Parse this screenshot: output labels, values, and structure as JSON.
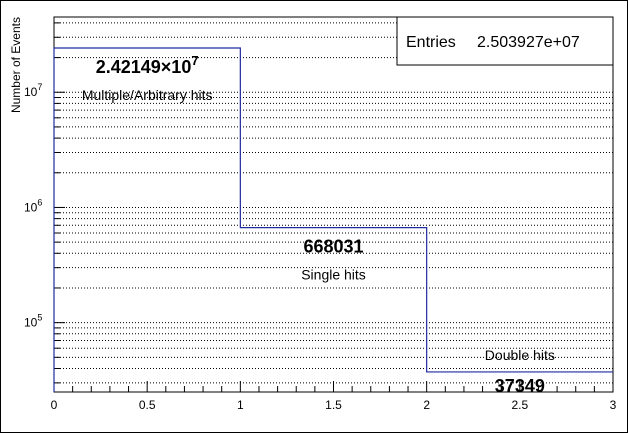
{
  "chart_data": {
    "type": "bar",
    "style": "step-histogram",
    "x_ticks": [
      "0",
      "0.5",
      "1",
      "1.5",
      "2",
      "2.5",
      "3"
    ],
    "y_ticks": [
      {
        "base": "10",
        "exp": "5"
      },
      {
        "base": "10",
        "exp": "6"
      },
      {
        "base": "10",
        "exp": "7"
      }
    ],
    "xlim": [
      0,
      3
    ],
    "ylim": [
      25000,
      45000000
    ],
    "yscale": "log",
    "grid": true,
    "ylabel": "Number of Events",
    "line_color": "#1f2aa0",
    "bins": [
      {
        "x_low": 0,
        "x_high": 1,
        "value": 24214900,
        "value_mantissa": "2.42149",
        "value_base": "×10",
        "value_exp": "7",
        "label": "Multiple/Arbitrary hits"
      },
      {
        "x_low": 1,
        "x_high": 2,
        "value": 668031,
        "value_text": "668031",
        "label": "Single hits"
      },
      {
        "x_low": 2,
        "x_high": 3,
        "value": 37349,
        "value_text": "37349",
        "label": "Double hits"
      }
    ]
  },
  "stats_box": {
    "entries_label": "Entries",
    "entries_value": "2.503927e+07"
  }
}
